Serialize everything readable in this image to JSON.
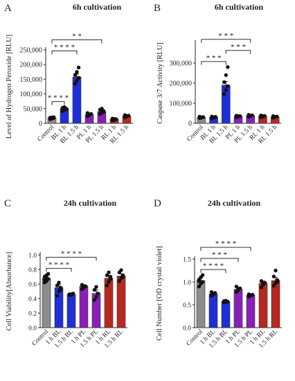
{
  "panels": [
    {
      "letter": "A",
      "title": "6h cultivation"
    },
    {
      "letter": "B",
      "title": "6h cultivation"
    },
    {
      "letter": "C",
      "title": "24h cultivation"
    },
    {
      "letter": "D",
      "title": "24h cultivation"
    }
  ],
  "colors": {
    "gray": "#8c8c8c",
    "blue": "#1f2fd8",
    "purple": "#8a1fb8",
    "red": "#b8281e",
    "dot": "#111111"
  },
  "chart_data": [
    {
      "type": "bar",
      "title": "6h cultivation",
      "ylabel": "Level of Hydrogen Peroxide [RLU]",
      "ylim": [
        0,
        250000
      ],
      "yticks": [
        0,
        50000,
        100000,
        150000,
        200000,
        250000
      ],
      "ytick_labels": [
        "0",
        "50,000",
        "100,000",
        "150,000",
        "200,000",
        "250,000"
      ],
      "categories": [
        "Control",
        "BL 1 h",
        "BL 1.5 h",
        "PL 1 h",
        "PL 1.5 h",
        "RL 1 h",
        "RL 1.5 h"
      ],
      "values": [
        18000,
        50000,
        158000,
        30000,
        40000,
        14000,
        25000
      ],
      "errors": [
        2000,
        4000,
        10000,
        4000,
        5000,
        2000,
        3000
      ],
      "colors": [
        "#8c8c8c",
        "#1f2fd8",
        "#1f2fd8",
        "#8a1fb8",
        "#8a1fb8",
        "#b8281e",
        "#b8281e"
      ],
      "points": [
        [
          14000,
          16000,
          18000,
          19000,
          20000,
          21000
        ],
        [
          42000,
          46000,
          50000,
          53000,
          55000,
          48000
        ],
        [
          135000,
          145000,
          155000,
          165000,
          175000,
          190000
        ],
        [
          24000,
          28000,
          32000,
          35000,
          30000
        ],
        [
          32000,
          36000,
          42000,
          46000,
          50000,
          38000
        ],
        [
          10000,
          12000,
          14000,
          16000,
          15000
        ],
        [
          20000,
          23000,
          26000,
          28000,
          25000
        ]
      ],
      "significance": [
        {
          "from": 0,
          "to": 1,
          "label": "* * * *"
        },
        {
          "from": 0,
          "to": 2,
          "label": "* * * *"
        },
        {
          "from": 0,
          "to": 4,
          "label": "* *"
        }
      ]
    },
    {
      "type": "bar",
      "title": "6h cultivation",
      "ylabel": "Caspase 3/7 Activity [RLU]",
      "ylim": [
        0,
        400000
      ],
      "yticks": [
        0,
        100000,
        200000,
        300000
      ],
      "ytick_labels": [
        "0",
        "100,000",
        "200,000",
        "300,000"
      ],
      "categories": [
        "Control",
        "BL 1 h",
        "BL 1.5 h",
        "PL 1 h",
        "PL 1.5 h",
        "RL 1 h",
        "RL 1.5 h"
      ],
      "values": [
        30000,
        30000,
        190000,
        35000,
        38000,
        35000,
        32000
      ],
      "errors": [
        3000,
        3000,
        18000,
        3000,
        3000,
        3000,
        3000
      ],
      "colors": [
        "#8c8c8c",
        "#1f2fd8",
        "#1f2fd8",
        "#8a1fb8",
        "#8a1fb8",
        "#b8281e",
        "#b8281e"
      ],
      "points": [
        [
          26000,
          28000,
          31000,
          33000,
          30000
        ],
        [
          25000,
          28000,
          32000,
          34000,
          30000
        ],
        [
          145000,
          165000,
          185000,
          205000,
          240000,
          280000
        ],
        [
          30000,
          33000,
          36000,
          38000,
          35000
        ],
        [
          33000,
          36000,
          40000,
          42000,
          38000
        ],
        [
          30000,
          33000,
          37000,
          39000,
          35000
        ],
        [
          28000,
          31000,
          34000,
          36000,
          32000
        ]
      ],
      "significance": [
        {
          "from": 0,
          "to": 2,
          "label": "* * *"
        },
        {
          "from": 2,
          "to": 4,
          "label": "* * *"
        },
        {
          "from": 0,
          "to": 4,
          "label": "* * *"
        }
      ]
    },
    {
      "type": "bar",
      "title": "24h cultivation",
      "ylabel": "Cell Viability[Absorbance]",
      "ylim": [
        0,
        1.0
      ],
      "yticks": [
        0,
        0.2,
        0.4,
        0.6,
        0.8,
        1.0
      ],
      "ytick_labels": [
        "0.0",
        "0.2",
        "0.4",
        "0.6",
        "0.8",
        "1.0"
      ],
      "categories": [
        "Control",
        "1 h BL",
        "1.5 h BL",
        "1 h PL",
        "1.5 h PL",
        "1 h RL",
        "1.5 h RL"
      ],
      "values": [
        0.68,
        0.55,
        0.46,
        0.57,
        0.47,
        0.68,
        0.71
      ],
      "errors": [
        0.03,
        0.04,
        0.01,
        0.02,
        0.05,
        0.04,
        0.03
      ],
      "colors": [
        "#8c8c8c",
        "#1f2fd8",
        "#1f2fd8",
        "#8a1fb8",
        "#8a1fb8",
        "#b8281e",
        "#b8281e"
      ],
      "points": [
        [
          0.62,
          0.64,
          0.67,
          0.7,
          0.72,
          0.74,
          0.66,
          0.69
        ],
        [
          0.44,
          0.5,
          0.55,
          0.58,
          0.62,
          0.52
        ],
        [
          0.45,
          0.46,
          0.47,
          0.46,
          0.45
        ],
        [
          0.53,
          0.55,
          0.57,
          0.59,
          0.56
        ],
        [
          0.38,
          0.42,
          0.47,
          0.52,
          0.56
        ],
        [
          0.58,
          0.63,
          0.67,
          0.72,
          0.76,
          0.7
        ],
        [
          0.64,
          0.68,
          0.72,
          0.76,
          0.79,
          0.7
        ]
      ],
      "significance": [
        {
          "from": 0,
          "to": 2,
          "label": "* * * *"
        },
        {
          "from": 0,
          "to": 4,
          "label": "* * * *"
        }
      ]
    },
    {
      "type": "bar",
      "title": "24h cultivation",
      "ylabel": "Cell Number [OD crystal violet]",
      "ylim": [
        0,
        1.5
      ],
      "yticks": [
        0,
        0.5,
        1.0,
        1.5
      ],
      "ytick_labels": [
        "0.0",
        "0.5",
        "1.0",
        "1.5"
      ],
      "categories": [
        "Control",
        "1 h BL",
        "1.5 h BL",
        "1 h PL",
        "1.5 h PL",
        "1 h RL",
        "1.5 h RL"
      ],
      "values": [
        1.03,
        0.74,
        0.57,
        0.84,
        0.71,
        0.97,
        1.03
      ],
      "errors": [
        0.06,
        0.03,
        0.02,
        0.04,
        0.02,
        0.05,
        0.07
      ],
      "colors": [
        "#8c8c8c",
        "#1f2fd8",
        "#1f2fd8",
        "#8a1fb8",
        "#8a1fb8",
        "#b8281e",
        "#b8281e"
      ],
      "points": [
        [
          0.9,
          0.96,
          1.0,
          1.05,
          1.1,
          1.15,
          1.02
        ],
        [
          0.7,
          0.73,
          0.76,
          0.78,
          0.74
        ],
        [
          0.55,
          0.56,
          0.57,
          0.58,
          0.59
        ],
        [
          0.78,
          0.82,
          0.86,
          0.9,
          0.84
        ],
        [
          0.68,
          0.7,
          0.72,
          0.73,
          0.71
        ],
        [
          0.88,
          0.94,
          0.98,
          1.02,
          0.96
        ],
        [
          0.92,
          0.98,
          1.04,
          1.12,
          1.25,
          1.0
        ]
      ],
      "significance": [
        {
          "from": 0,
          "to": 2,
          "label": "* * * *"
        },
        {
          "from": 0,
          "to": 3,
          "label": "* * *"
        },
        {
          "from": 0,
          "to": 4,
          "label": "* * * *"
        }
      ]
    }
  ]
}
